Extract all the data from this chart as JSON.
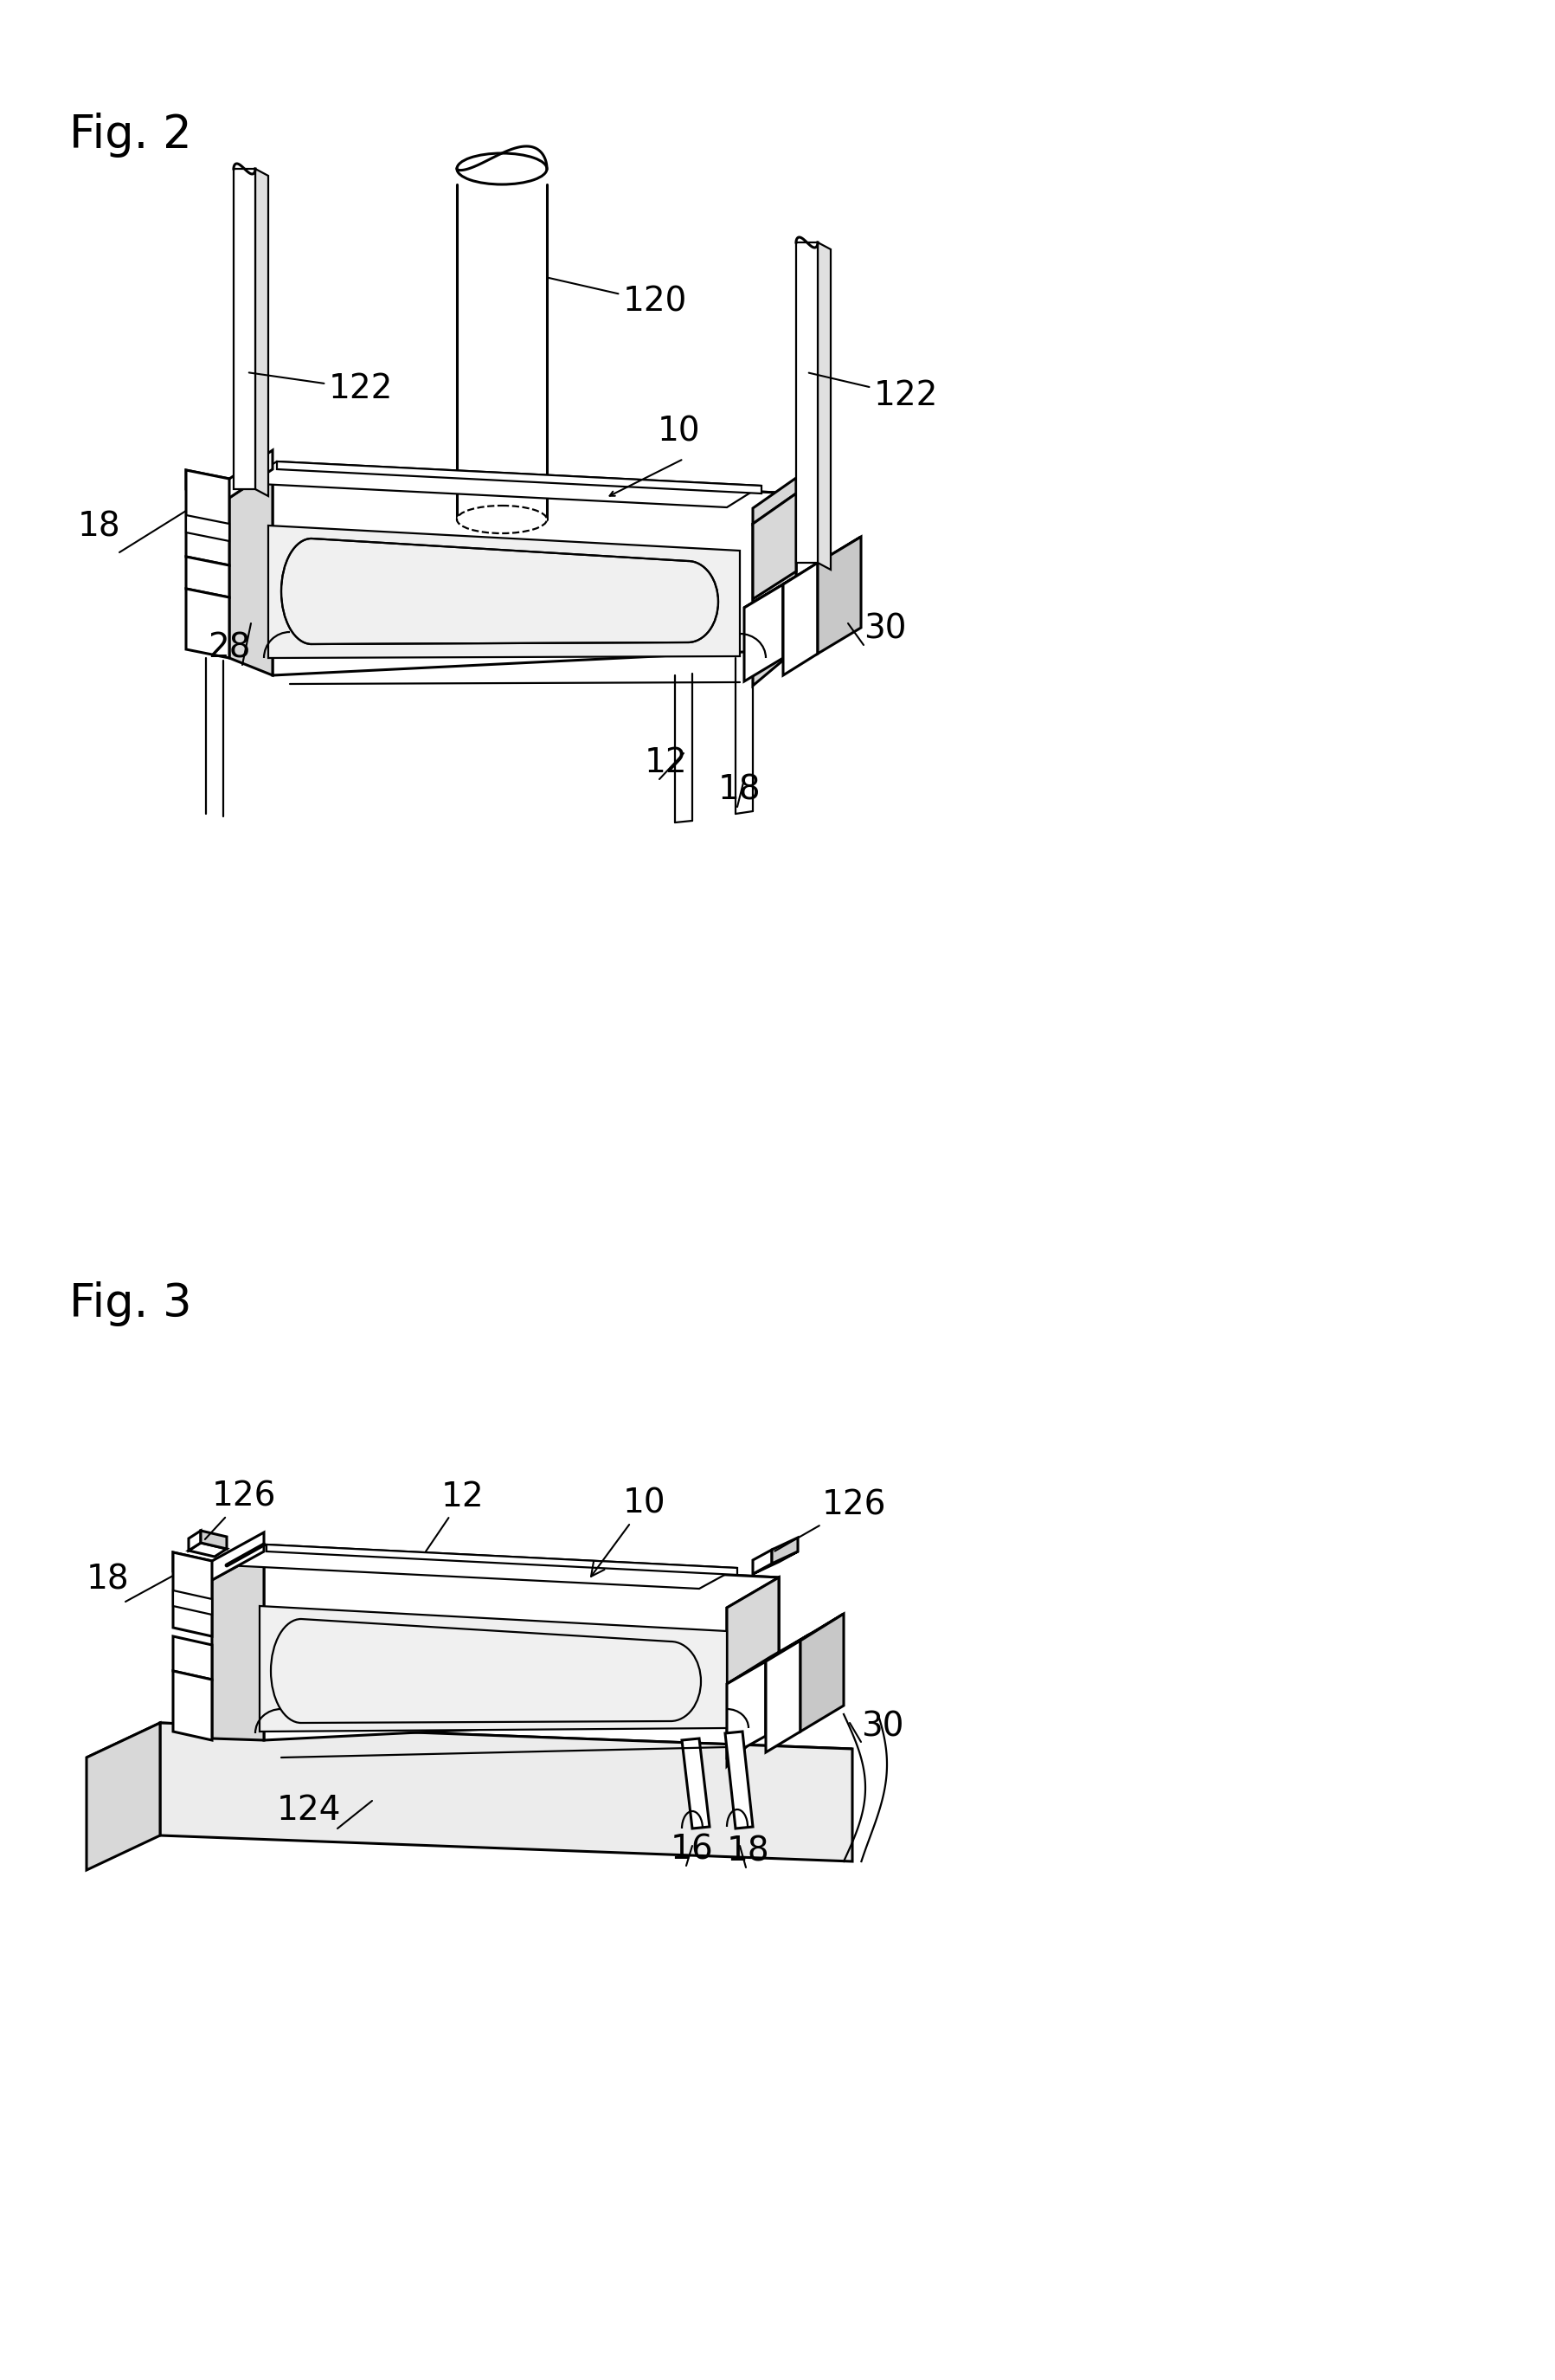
{
  "fig2_label": "Fig. 2",
  "fig3_label": "Fig. 3",
  "background_color": "#ffffff",
  "line_color": "#000000",
  "label_fontsize": 28,
  "fig_label_fontsize": 38,
  "lw": 2.2,
  "lw2": 1.6
}
